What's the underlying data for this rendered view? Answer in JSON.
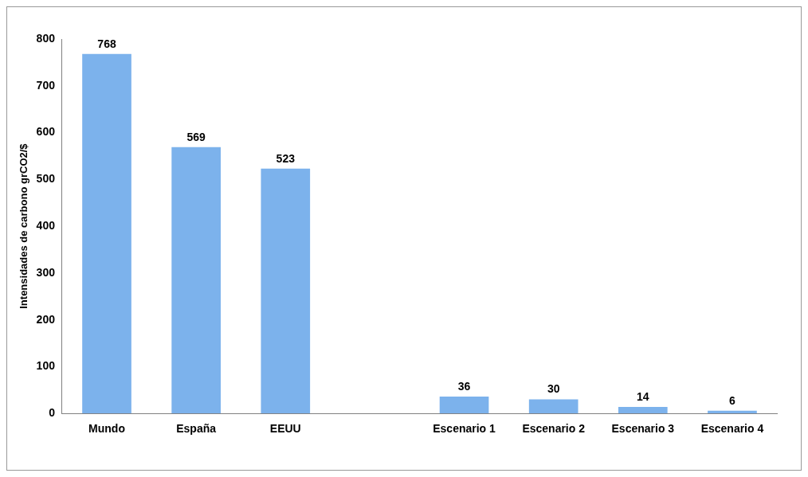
{
  "chart_data": {
    "type": "bar",
    "ylabel": "Intensidades de carbono grCO2/$",
    "categories": [
      "Mundo",
      "España",
      "EEUU",
      null,
      "Escenario 1",
      "Escenario 2",
      "Escenario 3",
      "Escenario 4"
    ],
    "values": [
      768,
      569,
      523,
      null,
      36,
      30,
      14,
      6
    ],
    "color": "#7cb2ec",
    "ylim": [
      0,
      800
    ],
    "yticks": [
      0,
      100,
      200,
      300,
      400,
      500,
      600,
      700,
      800
    ],
    "grid": false,
    "legend": false,
    "data_labels": true
  }
}
